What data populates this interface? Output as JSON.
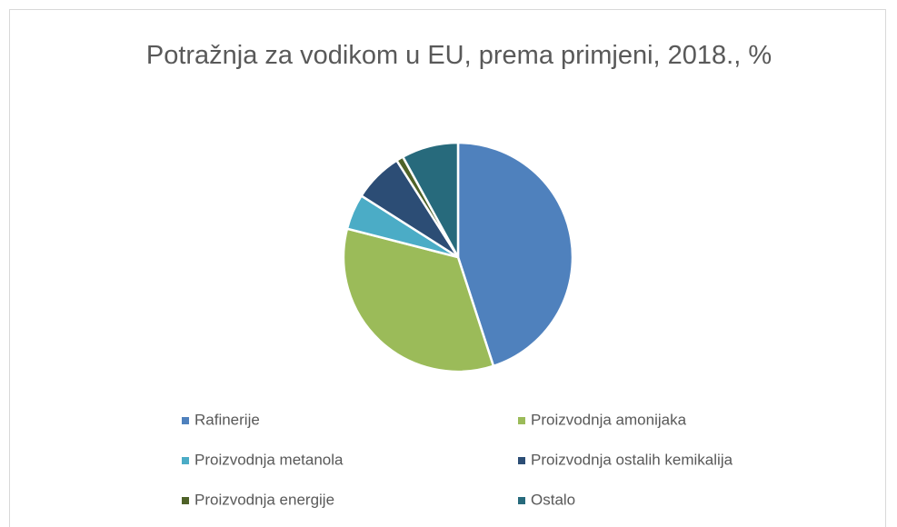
{
  "chart_data": {
    "type": "pie",
    "title": "Potražnja za vodikom u EU, prema primjeni, 2018., %",
    "categories": [
      "Rafinerije",
      "Proizvodnja amonijaka",
      "Proizvodnja metanola",
      "Proizvodnja ostalih kemikalija",
      "Proizvodnja energije",
      "Ostalo"
    ],
    "values": [
      45,
      34,
      5,
      7,
      1,
      8
    ],
    "colors": [
      "#4f81bd",
      "#9bbb59",
      "#4bacc6",
      "#2c4d75",
      "#4f6228",
      "#276a7c"
    ],
    "legend": "bottom"
  }
}
